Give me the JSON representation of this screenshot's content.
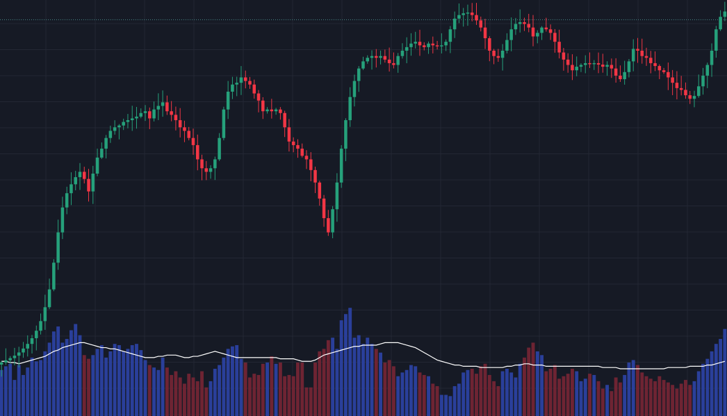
{
  "chart_data": {
    "type": "candlestick",
    "title": "",
    "xlabel": "",
    "ylabel": "",
    "grid": true,
    "legend": "none",
    "price_ylim": [
      0,
      100
    ],
    "volume_ylim": [
      0,
      100
    ],
    "reference_line_value": 97.2,
    "colors": {
      "background": "#161a25",
      "grid": "#232734",
      "up_candle": "#26a17b",
      "down_candle": "#f23645",
      "volume_up": "#2a3f9a",
      "volume_down": "#6e2433",
      "volume_ma": "#ffffff",
      "reference_line": "#4a8b8b"
    },
    "close": [
      1.0,
      1.6,
      2.2,
      2.9,
      3.8,
      4.9,
      6.2,
      7.8,
      9.9,
      12.6,
      16.5,
      21.5,
      29.0,
      37.5,
      44.5,
      48.5,
      51.0,
      53.0,
      54.5,
      52.5,
      49.0,
      54.0,
      58.5,
      61.0,
      64.0,
      66.0,
      67.0,
      67.5,
      68.5,
      69.0,
      69.5,
      70.0,
      71.0,
      71.5,
      69.5,
      72.0,
      73.0,
      74.0,
      71.5,
      70.5,
      69.0,
      67.0,
      66.0,
      64.0,
      62.0,
      58.0,
      55.5,
      54.5,
      55.5,
      58.0,
      64.0,
      72.0,
      77.0,
      79.0,
      79.5,
      81.0,
      80.0,
      79.0,
      76.5,
      74.5,
      71.5,
      72.0,
      71.5,
      72.0,
      71.0,
      67.0,
      63.0,
      62.0,
      61.0,
      59.0,
      58.0,
      55.0,
      51.5,
      47.0,
      41.5,
      37.5,
      44.0,
      51.5,
      61.0,
      69.0,
      75.5,
      80.0,
      83.5,
      85.5,
      86.5,
      87.0,
      86.5,
      87.0,
      86.0,
      85.0,
      84.5,
      87.0,
      88.5,
      89.5,
      90.5,
      91.0,
      90.0,
      89.5,
      90.5,
      90.0,
      89.8,
      90.0,
      91.0,
      94.5,
      97.5,
      98.5,
      99.0,
      99.2,
      98.5,
      97.0,
      95.0,
      92.0,
      88.5,
      87.0,
      86.5,
      88.5,
      91.5,
      94.5,
      96.0,
      96.5,
      96.0,
      95.0,
      92.5,
      93.5,
      95.0,
      94.5,
      93.5,
      91.0,
      88.0,
      86.0,
      84.5,
      83.0,
      84.0,
      84.5,
      85.0,
      84.8,
      85.0,
      84.6,
      84.0,
      84.5,
      83.5,
      81.5,
      80.5,
      82.5,
      85.5,
      89.0,
      88.5,
      87.0,
      86.5,
      85.0,
      84.2,
      83.0,
      82.5,
      81.0,
      79.5,
      78.0,
      77.5,
      76.0,
      75.0,
      75.8,
      78.5,
      81.5,
      84.5,
      88.5,
      94.5,
      98.0,
      99.5
    ],
    "volume": [
      37,
      40,
      42,
      29,
      41,
      33,
      39,
      47,
      44,
      45,
      52,
      59,
      68,
      72,
      59,
      62,
      69,
      74,
      65,
      49,
      46,
      49,
      54,
      57,
      47,
      52,
      58,
      57,
      52,
      54,
      57,
      58,
      53,
      45,
      41,
      39,
      37,
      47,
      39,
      33,
      36,
      31,
      26,
      34,
      31,
      28,
      36,
      23,
      28,
      38,
      41,
      47,
      54,
      56,
      57,
      46,
      43,
      31,
      34,
      33,
      42,
      43,
      48,
      42,
      43,
      32,
      33,
      32,
      43,
      43,
      23,
      23,
      43,
      52,
      54,
      61,
      63,
      54,
      77,
      82,
      87,
      63,
      65,
      58,
      63,
      58,
      54,
      51,
      43,
      45,
      40,
      32,
      35,
      37,
      41,
      40,
      35,
      33,
      32,
      26,
      24,
      17,
      17,
      16,
      24,
      26,
      35,
      37,
      38,
      34,
      40,
      42,
      33,
      28,
      24,
      36,
      38,
      35,
      31,
      42,
      47,
      55,
      59,
      52,
      49,
      36,
      38,
      41,
      30,
      32,
      34,
      38,
      36,
      28,
      30,
      34,
      33,
      28,
      22,
      25,
      20,
      31,
      27,
      33,
      43,
      45,
      41,
      35,
      32,
      30,
      28,
      32,
      29,
      27,
      25,
      22,
      26,
      29,
      25,
      28,
      36,
      42,
      46,
      52,
      58,
      62,
      70
    ],
    "volume_up": [
      true,
      true,
      true,
      true,
      true,
      true,
      true,
      true,
      true,
      true,
      true,
      true,
      true,
      true,
      true,
      true,
      true,
      true,
      true,
      false,
      false,
      true,
      true,
      true,
      true,
      true,
      true,
      true,
      true,
      true,
      true,
      true,
      true,
      true,
      false,
      true,
      true,
      true,
      false,
      false,
      false,
      false,
      false,
      false,
      false,
      false,
      false,
      false,
      true,
      true,
      true,
      true,
      true,
      true,
      true,
      true,
      false,
      false,
      false,
      false,
      false,
      true,
      false,
      true,
      false,
      false,
      false,
      false,
      false,
      false,
      false,
      false,
      false,
      false,
      false,
      false,
      true,
      true,
      true,
      true,
      true,
      true,
      true,
      true,
      true,
      true,
      false,
      true,
      false,
      false,
      false,
      true,
      true,
      true,
      true,
      true,
      false,
      false,
      true,
      false,
      false,
      true,
      true,
      true,
      true,
      true,
      true,
      true,
      false,
      false,
      false,
      false,
      false,
      false,
      false,
      true,
      true,
      true,
      true,
      true,
      false,
      false,
      false,
      true,
      true,
      false,
      false,
      false,
      false,
      false,
      false,
      false,
      true,
      true,
      true,
      false,
      true,
      false,
      false,
      true,
      false,
      false,
      false,
      true,
      true,
      true,
      false,
      false,
      false,
      false,
      false,
      false,
      false,
      false,
      false,
      false,
      false,
      false,
      false,
      true,
      true,
      true,
      true,
      true,
      true,
      true,
      true
    ],
    "volume_ma": [
      44,
      44,
      43,
      43,
      42,
      43,
      44,
      45,
      46,
      47,
      48,
      50,
      52,
      53,
      55,
      56,
      57,
      58,
      59,
      59,
      58,
      57,
      56,
      55,
      55,
      54,
      54,
      53,
      52,
      51,
      50,
      49,
      48,
      47,
      47,
      47,
      48,
      48,
      49,
      49,
      49,
      48,
      47,
      47,
      48,
      48,
      49,
      50,
      51,
      52,
      51,
      50,
      49,
      48,
      47,
      47,
      47,
      47,
      47,
      47,
      47,
      47,
      47,
      47,
      46,
      46,
      46,
      46,
      45,
      44,
      44,
      44,
      45,
      47,
      49,
      50,
      51,
      52,
      53,
      54,
      55,
      56,
      56,
      57,
      57,
      57,
      57,
      58,
      59,
      59,
      59,
      59,
      58,
      57,
      56,
      55,
      53,
      51,
      49,
      47,
      45,
      44,
      43,
      42,
      41,
      41,
      40,
      40,
      40,
      40,
      39,
      39,
      39,
      39,
      39,
      39,
      40,
      40,
      41,
      41,
      42,
      42,
      41,
      41,
      41,
      40,
      40,
      40,
      40,
      40,
      40,
      40,
      40,
      40,
      40,
      40,
      40,
      40,
      39,
      39,
      39,
      39,
      38,
      38,
      38,
      38,
      38,
      38,
      38,
      38,
      38,
      38,
      38,
      39,
      39,
      39,
      39,
      39,
      40,
      40,
      40,
      40,
      41,
      41,
      42,
      43,
      44
    ]
  }
}
